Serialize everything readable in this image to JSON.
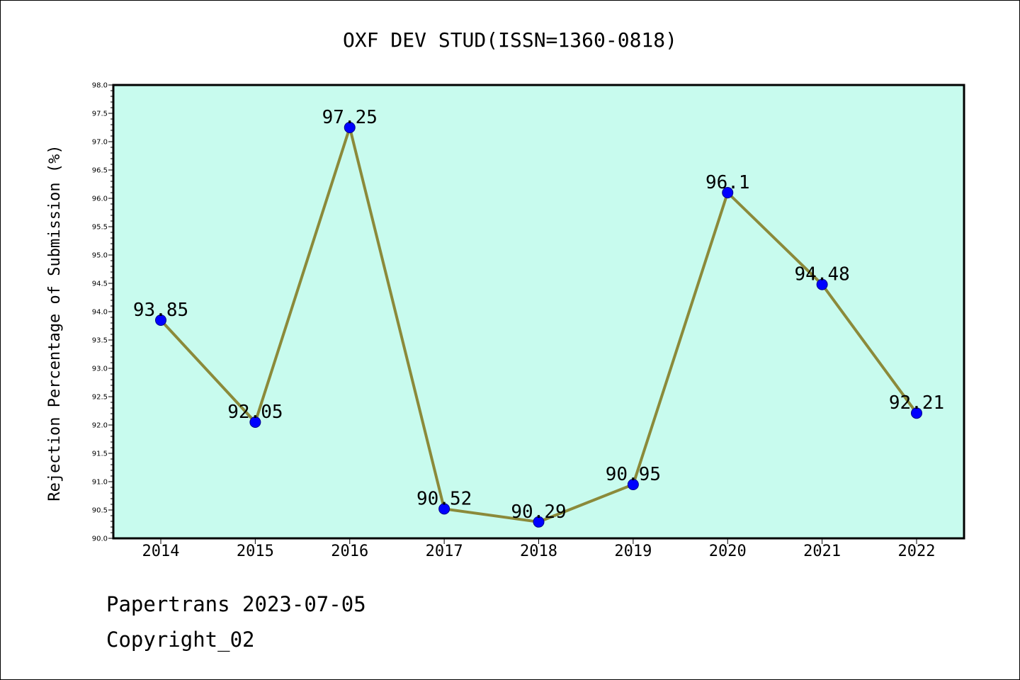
{
  "chart_data": {
    "type": "line",
    "title": "OXF DEV STUD(ISSN=1360-0818)",
    "xlabel": "",
    "ylabel": "Rejection Percentage of Submission (%)",
    "categories": [
      "2014",
      "2015",
      "2016",
      "2017",
      "2018",
      "2019",
      "2020",
      "2021",
      "2022"
    ],
    "series": [
      {
        "values": [
          93.85,
          92.05,
          97.25,
          90.52,
          90.29,
          90.95,
          96.1,
          94.48,
          92.21
        ]
      }
    ],
    "data_labels": [
      "93.85",
      "92.05",
      "97.25",
      "90.52",
      "90.29",
      "90.95",
      "96.1",
      "94.48",
      "92.21"
    ],
    "ylim": [
      90.0,
      98.0
    ],
    "yticks": [
      "90.0",
      "90.5",
      "91.0",
      "91.5",
      "92.0",
      "92.5",
      "93.0",
      "93.5",
      "94.0",
      "94.5",
      "95.0",
      "95.5",
      "96.0",
      "96.5",
      "97.0",
      "97.5",
      "98.0"
    ],
    "grid": false,
    "colors": {
      "plot_background": "#c8fbee",
      "line": "#8b8a3a",
      "marker": "#0000ff"
    }
  },
  "footer": {
    "line1": "Papertrans 2023-07-05",
    "line2": "Copyright_02"
  }
}
